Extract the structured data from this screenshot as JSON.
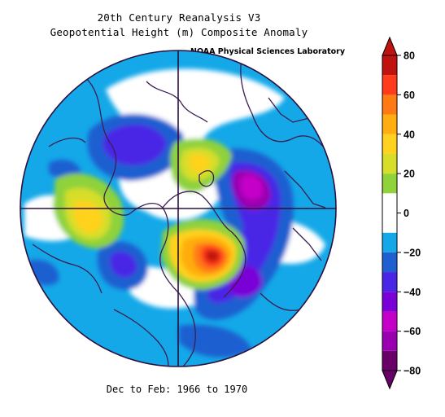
{
  "header": {
    "title_line1": "20th Century Reanalysis V3",
    "title_line2": "Geopotential Height (m) Composite Anomaly",
    "credit": "NOAA Physical Sciences Laboratory"
  },
  "footer": {
    "period": "Dec to Feb: 1966 to 1970"
  },
  "map": {
    "projection": "north polar stereographic",
    "colors": {
      "outline": "#3d1d52",
      "graticule": "#2b0f3d"
    }
  },
  "colorbar": {
    "tick_labels": [
      "80",
      "60",
      "40",
      "20",
      "0",
      "−20",
      "−40",
      "−60",
      "−80"
    ],
    "palette": [
      {
        "range": [
          -80,
          -70
        ],
        "color": "#680068"
      },
      {
        "range": [
          -70,
          -60
        ],
        "color": "#9900b0"
      },
      {
        "range": [
          -60,
          -50
        ],
        "color": "#c400c8"
      },
      {
        "range": [
          -50,
          -40
        ],
        "color": "#7a00d8"
      },
      {
        "range": [
          -40,
          -30
        ],
        "color": "#4a25e6"
      },
      {
        "range": [
          -30,
          -20
        ],
        "color": "#1f5fd0"
      },
      {
        "range": [
          -20,
          -10
        ],
        "color": "#14a8e8"
      },
      {
        "range": [
          -10,
          10
        ],
        "color": "#ffffff"
      },
      {
        "range": [
          10,
          20
        ],
        "color": "#8fd23a"
      },
      {
        "range": [
          20,
          30
        ],
        "color": "#d6de29"
      },
      {
        "range": [
          30,
          40
        ],
        "color": "#ffd21f"
      },
      {
        "range": [
          40,
          50
        ],
        "color": "#ffad10"
      },
      {
        "range": [
          50,
          60
        ],
        "color": "#ff7a12"
      },
      {
        "range": [
          60,
          70
        ],
        "color": "#ff3b1b"
      },
      {
        "range": [
          70,
          80
        ],
        "color": "#c0120f"
      }
    ]
  }
}
